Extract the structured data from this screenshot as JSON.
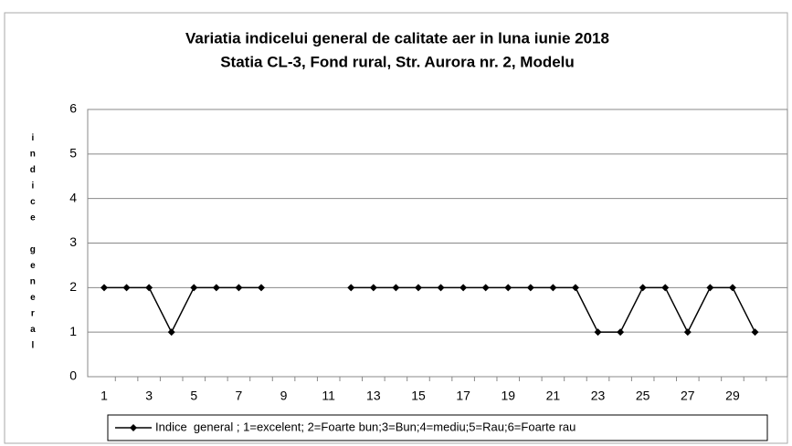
{
  "chart_data": {
    "type": "line",
    "title": "Variatia indicelui general de calitate aer in luna iunie 2018",
    "subtitle": "Statia CL-3,  Fond rural, Str. Aurora nr. 2, Modelu",
    "y_label": "indice general",
    "categories": [
      1,
      null,
      3,
      null,
      5,
      null,
      7,
      null,
      9,
      null,
      11,
      null,
      13,
      null,
      15,
      null,
      17,
      null,
      19,
      null,
      21,
      null,
      23,
      null,
      25,
      null,
      27,
      null,
      29,
      null
    ],
    "series": [
      {
        "name": "Indice  general ; 1=excelent; 2=Foarte bun;3=Bun;4=mediu;5=Rau;6=Foarte rau",
        "color": "#000000",
        "values": [
          2,
          2,
          2,
          1,
          2,
          2,
          2,
          2,
          null,
          null,
          null,
          2,
          2,
          2,
          2,
          2,
          2,
          2,
          2,
          2,
          2,
          2,
          1,
          1,
          2,
          2,
          1,
          2,
          2,
          1
        ]
      }
    ],
    "ylim": [
      0,
      6
    ],
    "yticks": [
      0,
      1,
      2,
      3,
      4,
      5,
      6
    ],
    "grid": true,
    "legend": "bottom"
  }
}
